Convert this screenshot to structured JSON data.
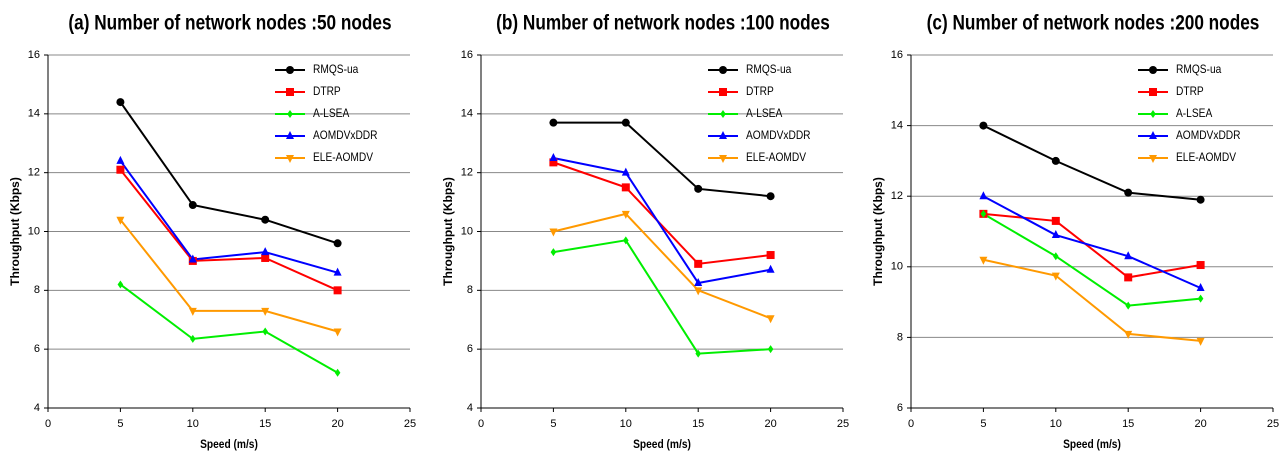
{
  "chart_data": [
    {
      "type": "line",
      "title": "(a) Number of network nodes :50 nodes",
      "x_label": "Speed (m/s)",
      "y_label": "Throughput (Kbps)",
      "x": [
        5,
        10,
        15,
        20
      ],
      "xlim": [
        0,
        25
      ],
      "xticks": [
        0,
        5,
        10,
        15,
        20,
        25
      ],
      "ylim": [
        4,
        16
      ],
      "yticks": [
        4,
        6,
        8,
        10,
        12,
        14,
        16
      ],
      "grid": true,
      "legend": "upper right",
      "series": [
        {
          "name": "RMQS-ua",
          "color": "#000000",
          "marker": "circle",
          "values": [
            14.4,
            10.9,
            10.4,
            9.6
          ]
        },
        {
          "name": "DTRP",
          "color": "#ff0000",
          "marker": "square",
          "values": [
            12.1,
            9.0,
            9.1,
            8.0
          ]
        },
        {
          "name": "A-LSEA",
          "color": "#00ee00",
          "marker": "diamond",
          "values": [
            8.2,
            6.35,
            6.6,
            5.2
          ]
        },
        {
          "name": "AOMDVxDDR",
          "color": "#0000ff",
          "marker": "triangle-up",
          "values": [
            12.4,
            9.05,
            9.3,
            8.6
          ]
        },
        {
          "name": "ELE-AOMDV",
          "color": "#ff9900",
          "marker": "triangle-down",
          "values": [
            10.4,
            7.3,
            7.3,
            6.6
          ]
        }
      ]
    },
    {
      "type": "line",
      "title": "(b) Number of network nodes :100 nodes",
      "x_label": "Speed (m/s)",
      "y_label": "Throughput (Kbps)",
      "x": [
        5,
        10,
        15,
        20
      ],
      "xlim": [
        0,
        25
      ],
      "xticks": [
        0,
        5,
        10,
        15,
        20,
        25
      ],
      "ylim": [
        4,
        16
      ],
      "yticks": [
        4,
        6,
        8,
        10,
        12,
        14,
        16
      ],
      "grid": true,
      "legend": "upper right",
      "series": [
        {
          "name": "RMQS-ua",
          "color": "#000000",
          "marker": "circle",
          "values": [
            13.7,
            13.7,
            11.45,
            11.2
          ]
        },
        {
          "name": "DTRP",
          "color": "#ff0000",
          "marker": "square",
          "values": [
            12.35,
            11.5,
            8.9,
            9.2
          ]
        },
        {
          "name": "A-LSEA",
          "color": "#00ee00",
          "marker": "diamond",
          "values": [
            9.3,
            9.7,
            5.85,
            6.0
          ]
        },
        {
          "name": "AOMDVxDDR",
          "color": "#0000ff",
          "marker": "triangle-up",
          "values": [
            12.5,
            12.0,
            8.25,
            8.7
          ]
        },
        {
          "name": "ELE-AOMDV",
          "color": "#ff9900",
          "marker": "triangle-down",
          "values": [
            10.0,
            10.6,
            8.0,
            7.05
          ]
        }
      ]
    },
    {
      "type": "line",
      "title": "(c) Number of network nodes :200 nodes",
      "x_label": "Speed (m/s)",
      "y_label": "Throughput (Kbps)",
      "x": [
        5,
        10,
        15,
        20
      ],
      "xlim": [
        0,
        25
      ],
      "xticks": [
        0,
        5,
        10,
        15,
        20,
        25
      ],
      "ylim": [
        6,
        16
      ],
      "yticks": [
        6,
        8,
        10,
        12,
        14,
        16
      ],
      "grid": true,
      "legend": "upper right",
      "series": [
        {
          "name": "RMQS-ua",
          "color": "#000000",
          "marker": "circle",
          "values": [
            14.0,
            13.0,
            12.1,
            11.9
          ]
        },
        {
          "name": "DTRP",
          "color": "#ff0000",
          "marker": "square",
          "values": [
            11.5,
            11.3,
            9.7,
            10.05
          ]
        },
        {
          "name": "A-LSEA",
          "color": "#00ee00",
          "marker": "diamond",
          "values": [
            11.5,
            10.3,
            8.9,
            9.1
          ]
        },
        {
          "name": "AOMDVxDDR",
          "color": "#0000ff",
          "marker": "triangle-up",
          "values": [
            12.0,
            10.9,
            10.3,
            9.4
          ]
        },
        {
          "name": "ELE-AOMDV",
          "color": "#ff9900",
          "marker": "triangle-down",
          "values": [
            10.2,
            9.75,
            8.1,
            7.9
          ]
        }
      ]
    }
  ]
}
